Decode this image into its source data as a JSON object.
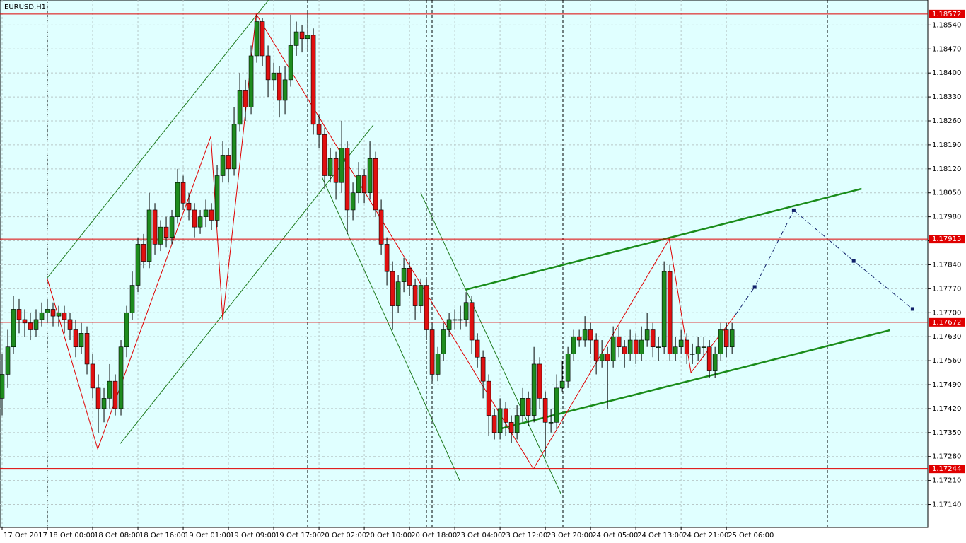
{
  "chart_data": {
    "type": "candlestick",
    "title": "EURUSD,H1",
    "xlim": [
      -0.375,
      163.6
    ],
    "ylim": [
      1.17073,
      1.18613
    ],
    "yticks": [
      {
        "value": 1.1854,
        "label": "1.18540"
      },
      {
        "value": 1.1847,
        "label": "1.18470"
      },
      {
        "value": 1.184,
        "label": "1.18400"
      },
      {
        "value": 1.1833,
        "label": "1.18330"
      },
      {
        "value": 1.1826,
        "label": "1.18260"
      },
      {
        "value": 1.1819,
        "label": "1.18190"
      },
      {
        "value": 1.1812,
        "label": "1.18120"
      },
      {
        "value": 1.1805,
        "label": "1.18050"
      },
      {
        "value": 1.1798,
        "label": "1.17980"
      },
      {
        "value": 1.1791,
        "label": "1.17910"
      },
      {
        "value": 1.1784,
        "label": "1.17840"
      },
      {
        "value": 1.1777,
        "label": "1.17770"
      },
      {
        "value": 1.177,
        "label": "1.17700"
      },
      {
        "value": 1.1763,
        "label": "1.17630"
      },
      {
        "value": 1.1756,
        "label": "1.17560"
      },
      {
        "value": 1.1749,
        "label": "1.17490"
      },
      {
        "value": 1.1742,
        "label": "1.17420"
      },
      {
        "value": 1.1735,
        "label": "1.17350"
      },
      {
        "value": 1.1728,
        "label": "1.17280"
      },
      {
        "value": 1.1721,
        "label": "1.17210"
      },
      {
        "value": 1.1714,
        "label": "1.17140"
      }
    ],
    "xticks": [
      {
        "value": 0,
        "label": "17 Oct 2017"
      },
      {
        "value": 8,
        "label": "18 Oct 00:00"
      },
      {
        "value": 16,
        "label": "18 Oct 08:00"
      },
      {
        "value": 24,
        "label": "18 Oct 16:00"
      },
      {
        "value": 32,
        "label": "19 Oct 01:00"
      },
      {
        "value": 40,
        "label": "19 Oct 09:00"
      },
      {
        "value": 48,
        "label": "19 Oct 17:00"
      },
      {
        "value": 56,
        "label": "20 Oct 02:00"
      },
      {
        "value": 64,
        "label": "20 Oct 10:00"
      },
      {
        "value": 72,
        "label": "20 Oct 18:00"
      },
      {
        "value": 80,
        "label": "23 Oct 04:00"
      },
      {
        "value": 88,
        "label": "23 Oct 12:00"
      },
      {
        "value": 96,
        "label": "23 Oct 20:00"
      },
      {
        "value": 104,
        "label": "24 Oct 05:00"
      },
      {
        "value": 112,
        "label": "24 Oct 13:00"
      },
      {
        "value": 120,
        "label": "24 Oct 21:00"
      },
      {
        "value": 128,
        "label": "25 Oct 06:00"
      }
    ],
    "grid": true,
    "background": "#e0ffff",
    "up_color": "#1e8c1e",
    "down_color": "#e01010",
    "ohlc": [
      [
        1.1745,
        1.1758,
        1.174,
        1.1752
      ],
      [
        1.1752,
        1.1765,
        1.1748,
        1.176
      ],
      [
        1.176,
        1.1775,
        1.1758,
        1.1771
      ],
      [
        1.1771,
        1.1774,
        1.1764,
        1.1768
      ],
      [
        1.1768,
        1.1771,
        1.1763,
        1.1767
      ],
      [
        1.1767,
        1.177,
        1.1762,
        1.1765
      ],
      [
        1.1765,
        1.1771,
        1.1763,
        1.1768
      ],
      [
        1.1768,
        1.1773,
        1.1766,
        1.177
      ],
      [
        1.177,
        1.1774,
        1.1767,
        1.1771
      ],
      [
        1.1771,
        1.1773,
        1.1766,
        1.1769
      ],
      [
        1.1769,
        1.1772,
        1.1766,
        1.177
      ],
      [
        1.177,
        1.1772,
        1.1764,
        1.1768
      ],
      [
        1.1768,
        1.177,
        1.1762,
        1.1765
      ],
      [
        1.1765,
        1.1768,
        1.1757,
        1.176
      ],
      [
        1.176,
        1.1767,
        1.1758,
        1.1764
      ],
      [
        1.1764,
        1.1766,
        1.1752,
        1.1755
      ],
      [
        1.1755,
        1.1758,
        1.1745,
        1.1748
      ],
      [
        1.1748,
        1.1752,
        1.1735,
        1.1742
      ],
      [
        1.1742,
        1.1748,
        1.1738,
        1.1745
      ],
      [
        1.1745,
        1.1755,
        1.1742,
        1.175
      ],
      [
        1.175,
        1.1752,
        1.174,
        1.1742
      ],
      [
        1.1742,
        1.1762,
        1.174,
        1.176
      ],
      [
        1.176,
        1.1772,
        1.1757,
        1.177
      ],
      [
        1.177,
        1.1782,
        1.1768,
        1.1778
      ],
      [
        1.1778,
        1.1792,
        1.1776,
        1.179
      ],
      [
        1.179,
        1.1793,
        1.1783,
        1.1785
      ],
      [
        1.1785,
        1.1805,
        1.1783,
        1.18
      ],
      [
        1.18,
        1.1802,
        1.1787,
        1.179
      ],
      [
        1.179,
        1.1797,
        1.1788,
        1.1795
      ],
      [
        1.1795,
        1.1798,
        1.1789,
        1.1792
      ],
      [
        1.1792,
        1.18,
        1.179,
        1.1798
      ],
      [
        1.1798,
        1.1812,
        1.1796,
        1.1808
      ],
      [
        1.1808,
        1.181,
        1.18,
        1.1802
      ],
      [
        1.1802,
        1.1805,
        1.1797,
        1.18
      ],
      [
        1.18,
        1.1802,
        1.1792,
        1.1795
      ],
      [
        1.1795,
        1.18,
        1.1793,
        1.1798
      ],
      [
        1.1798,
        1.1803,
        1.1795,
        1.18
      ],
      [
        1.18,
        1.1802,
        1.1794,
        1.1797
      ],
      [
        1.1797,
        1.1813,
        1.1795,
        1.181
      ],
      [
        1.181,
        1.182,
        1.1808,
        1.1816
      ],
      [
        1.1816,
        1.1818,
        1.1808,
        1.1812
      ],
      [
        1.1812,
        1.183,
        1.181,
        1.1825
      ],
      [
        1.1825,
        1.184,
        1.1823,
        1.1835
      ],
      [
        1.1835,
        1.1838,
        1.1826,
        1.183
      ],
      [
        1.183,
        1.1848,
        1.1828,
        1.1845
      ],
      [
        1.1845,
        1.1857,
        1.1843,
        1.1855
      ],
      [
        1.1855,
        1.1856,
        1.1842,
        1.1845
      ],
      [
        1.1845,
        1.1848,
        1.1833,
        1.1838
      ],
      [
        1.1838,
        1.1843,
        1.1835,
        1.184
      ],
      [
        1.184,
        1.1842,
        1.1827,
        1.1832
      ],
      [
        1.1832,
        1.1842,
        1.1828,
        1.1838
      ],
      [
        1.1838,
        1.1857,
        1.1836,
        1.1848
      ],
      [
        1.1848,
        1.1855,
        1.1845,
        1.1852
      ],
      [
        1.1852,
        1.1854,
        1.1846,
        1.185
      ],
      [
        1.185,
        1.1858,
        1.1847,
        1.1851
      ],
      [
        1.1851,
        1.1853,
        1.1822,
        1.1825
      ],
      [
        1.1825,
        1.1828,
        1.1818,
        1.1822
      ],
      [
        1.1822,
        1.1824,
        1.1806,
        1.181
      ],
      [
        1.181,
        1.1818,
        1.1808,
        1.1815
      ],
      [
        1.1815,
        1.1817,
        1.1803,
        1.1808
      ],
      [
        1.1808,
        1.1826,
        1.1805,
        1.1818
      ],
      [
        1.1818,
        1.182,
        1.1793,
        1.18
      ],
      [
        1.18,
        1.1808,
        1.1797,
        1.1805
      ],
      [
        1.1805,
        1.1814,
        1.1802,
        1.181
      ],
      [
        1.181,
        1.1812,
        1.1802,
        1.1805
      ],
      [
        1.1805,
        1.182,
        1.1803,
        1.1815
      ],
      [
        1.1815,
        1.1817,
        1.1798,
        1.18
      ],
      [
        1.18,
        1.1803,
        1.1787,
        1.179
      ],
      [
        1.179,
        1.1792,
        1.1778,
        1.1782
      ],
      [
        1.1782,
        1.1785,
        1.1765,
        1.1772
      ],
      [
        1.1772,
        1.1781,
        1.177,
        1.1779
      ],
      [
        1.1779,
        1.1786,
        1.1776,
        1.1783
      ],
      [
        1.1783,
        1.1785,
        1.1775,
        1.1778
      ],
      [
        1.1778,
        1.178,
        1.1768,
        1.1772
      ],
      [
        1.1772,
        1.178,
        1.177,
        1.1778
      ],
      [
        1.1778,
        1.178,
        1.1762,
        1.1765
      ],
      [
        1.1765,
        1.1767,
        1.175,
        1.1752
      ],
      [
        1.1752,
        1.176,
        1.175,
        1.1758
      ],
      [
        1.1758,
        1.1767,
        1.1756,
        1.1765
      ],
      [
        1.1765,
        1.177,
        1.1763,
        1.1768
      ],
      [
        1.1768,
        1.1771,
        1.1765,
        1.1768
      ],
      [
        1.1768,
        1.1772,
        1.1765,
        1.1768
      ],
      [
        1.1768,
        1.1776,
        1.1766,
        1.1773
      ],
      [
        1.1773,
        1.1775,
        1.1758,
        1.1762
      ],
      [
        1.1762,
        1.1764,
        1.1754,
        1.1757
      ],
      [
        1.1757,
        1.1759,
        1.1745,
        1.175
      ],
      [
        1.175,
        1.1752,
        1.1734,
        1.174
      ],
      [
        1.174,
        1.1742,
        1.1733,
        1.1735
      ],
      [
        1.1735,
        1.1745,
        1.1733,
        1.1742
      ],
      [
        1.1742,
        1.1744,
        1.1734,
        1.1738
      ],
      [
        1.1738,
        1.174,
        1.1732,
        1.1735
      ],
      [
        1.1735,
        1.1743,
        1.1733,
        1.174
      ],
      [
        1.174,
        1.1748,
        1.1738,
        1.1745
      ],
      [
        1.1745,
        1.1747,
        1.1737,
        1.174
      ],
      [
        1.174,
        1.176,
        1.1738,
        1.1755
      ],
      [
        1.1755,
        1.1757,
        1.1742,
        1.1745
      ],
      [
        1.1745,
        1.1747,
        1.1728,
        1.1738
      ],
      [
        1.1738,
        1.1742,
        1.1735,
        1.1738
      ],
      [
        1.1738,
        1.1752,
        1.1736,
        1.1748
      ],
      [
        1.1748,
        1.1756,
        1.1747,
        1.175
      ],
      [
        1.175,
        1.176,
        1.1748,
        1.1758
      ],
      [
        1.1758,
        1.1765,
        1.1756,
        1.1763
      ],
      [
        1.1763,
        1.1765,
        1.176,
        1.1762
      ],
      [
        1.1762,
        1.1769,
        1.176,
        1.1765
      ],
      [
        1.1765,
        1.1767,
        1.1758,
        1.1762
      ],
      [
        1.1762,
        1.1764,
        1.1752,
        1.1756
      ],
      [
        1.1756,
        1.1762,
        1.1754,
        1.1758
      ],
      [
        1.1758,
        1.176,
        1.1742,
        1.1756
      ],
      [
        1.1756,
        1.1766,
        1.1754,
        1.1763
      ],
      [
        1.1763,
        1.1766,
        1.1757,
        1.176
      ],
      [
        1.176,
        1.1762,
        1.1754,
        1.1758
      ],
      [
        1.1758,
        1.1765,
        1.1756,
        1.1762
      ],
      [
        1.1762,
        1.1764,
        1.1755,
        1.1758
      ],
      [
        1.1758,
        1.1766,
        1.1756,
        1.1762
      ],
      [
        1.1762,
        1.177,
        1.176,
        1.1765
      ],
      [
        1.1765,
        1.1767,
        1.1757,
        1.176
      ],
      [
        1.176,
        1.1763,
        1.1756,
        1.176
      ],
      [
        1.176,
        1.1785,
        1.1758,
        1.1782
      ],
      [
        1.1782,
        1.1784,
        1.1756,
        1.1758
      ],
      [
        1.1758,
        1.1763,
        1.1756,
        1.176
      ],
      [
        1.176,
        1.1765,
        1.1758,
        1.1762
      ],
      [
        1.1762,
        1.1764,
        1.1755,
        1.1758
      ],
      [
        1.1758,
        1.1761,
        1.1755,
        1.1758
      ],
      [
        1.1758,
        1.1763,
        1.1756,
        1.176
      ],
      [
        1.176,
        1.1763,
        1.1757,
        1.176
      ],
      [
        1.176,
        1.1762,
        1.1751,
        1.1753
      ],
      [
        1.1753,
        1.176,
        1.1751,
        1.1758
      ],
      [
        1.1758,
        1.1767,
        1.1756,
        1.1765
      ],
      [
        1.1765,
        1.1767,
        1.1757,
        1.176
      ],
      [
        1.176,
        1.1767,
        1.1758,
        1.1765
      ]
    ],
    "hlines": [
      1.18572,
      1.17915,
      1.17672,
      1.17244
    ],
    "hline_color": "#e00000",
    "zigzag": {
      "color": "#e00000",
      "x": [
        8,
        16.9,
        36.9,
        39,
        44.9,
        93.9,
        117.9,
        121.75,
        129.6
      ],
      "y": [
        1.17798,
        1.17302,
        1.18215,
        1.1768,
        1.18572,
        1.17244,
        1.17915,
        1.17525,
        1.17694
      ]
    },
    "trendlines": [
      {
        "color": "#1e7a1e",
        "x": [
          8,
          47.1
        ],
        "y": [
          1.17802,
          1.18613
        ]
      },
      {
        "color": "#1e7a1e",
        "x": [
          20.9,
          65.6
        ],
        "y": [
          1.17318,
          1.18248
        ]
      },
      {
        "color": "#1e7a1e",
        "x": [
          56.5,
          80.9
        ],
        "y": [
          1.18097,
          1.17209
        ]
      },
      {
        "color": "#1e7a1e",
        "x": [
          74,
          98.75
        ],
        "y": [
          1.18049,
          1.17172
        ]
      },
      {
        "color": "#1a8c1a",
        "x": [
          81.9,
          151.9
        ],
        "y": [
          1.17767,
          1.18062
        ],
        "width": 2.5
      },
      {
        "color": "#1a8c1a",
        "x": [
          87.75,
          156.9
        ],
        "y": [
          1.1736,
          1.17649
        ],
        "width": 2.5
      }
    ],
    "forecast": {
      "color": "#10206a",
      "x": [
        129.6,
        133,
        139.9,
        150.5,
        160.9
      ],
      "y": [
        1.17694,
        1.17775,
        1.17999,
        1.17851,
        1.17711
      ]
    }
  }
}
